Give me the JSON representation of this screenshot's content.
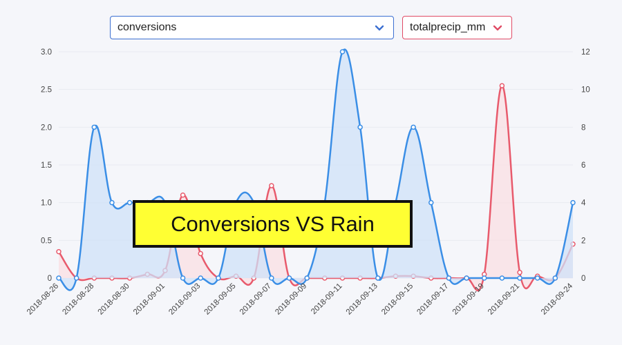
{
  "controls": {
    "metric_select": {
      "value": "conversions",
      "icon": "chevron-down-icon",
      "color": "#3b6fd1"
    },
    "weather_select": {
      "value": "totalprecip_mm",
      "icon": "chevron-down-icon",
      "color": "#e04a64"
    }
  },
  "banner": {
    "text": "Conversions VS Rain",
    "background": "#ffff33"
  },
  "chart_data": {
    "type": "area",
    "title": "",
    "xlabel": "",
    "ylabel": "",
    "grid": true,
    "x": [
      "2018-08-26",
      "2018-08-27",
      "2018-08-28",
      "2018-08-29",
      "2018-08-30",
      "2018-08-31",
      "2018-09-01",
      "2018-09-02",
      "2018-09-03",
      "2018-09-04",
      "2018-09-05",
      "2018-09-06",
      "2018-09-07",
      "2018-09-08",
      "2018-09-09",
      "2018-09-10",
      "2018-09-11",
      "2018-09-12",
      "2018-09-13",
      "2018-09-14",
      "2018-09-15",
      "2018-09-16",
      "2018-09-17",
      "2018-09-18",
      "2018-09-19",
      "2018-09-20",
      "2018-09-21",
      "2018-09-22",
      "2018-09-23",
      "2018-09-24"
    ],
    "x_tick_labels": [
      "2018-08-26",
      "2018-08-28",
      "2018-08-30",
      "2018-09-01",
      "2018-09-03",
      "2018-09-05",
      "2018-09-07",
      "2018-09-09",
      "2018-09-11",
      "2018-09-13",
      "2018-09-15",
      "2018-09-17",
      "2018-09-19",
      "2018-09-21",
      "2018-09-24"
    ],
    "y_left": {
      "ylim": [
        0,
        3
      ],
      "ticks": [
        "0",
        "0.5",
        "1.0",
        "1.5",
        "2.0",
        "2.5",
        "3.0"
      ]
    },
    "y_right": {
      "ylim": [
        0,
        12
      ],
      "ticks": [
        "0",
        "2",
        "4",
        "6",
        "8",
        "10",
        "12"
      ]
    },
    "series": [
      {
        "name": "conversions",
        "axis": "left",
        "color": "#3a8ee6",
        "fill": "#cfe2f8",
        "values": [
          0,
          0,
          2,
          1,
          1,
          1,
          1,
          0,
          0,
          0,
          1,
          1,
          0,
          0,
          0,
          1,
          3,
          2,
          0,
          1,
          2,
          1,
          0,
          0,
          0,
          0,
          0,
          0,
          0,
          1
        ]
      },
      {
        "name": "totalprecip_mm",
        "axis": "right",
        "color": "#e85a6c",
        "fill": "#f9dfe3",
        "values": [
          1.4,
          0,
          0,
          0,
          0,
          0.2,
          0.4,
          4.4,
          1.3,
          0,
          0.1,
          0,
          4.9,
          0,
          0,
          0,
          0,
          0,
          0,
          0.1,
          0.1,
          0,
          0,
          0,
          0.2,
          10.2,
          0.3,
          0.1,
          0,
          1.8
        ]
      }
    ]
  }
}
